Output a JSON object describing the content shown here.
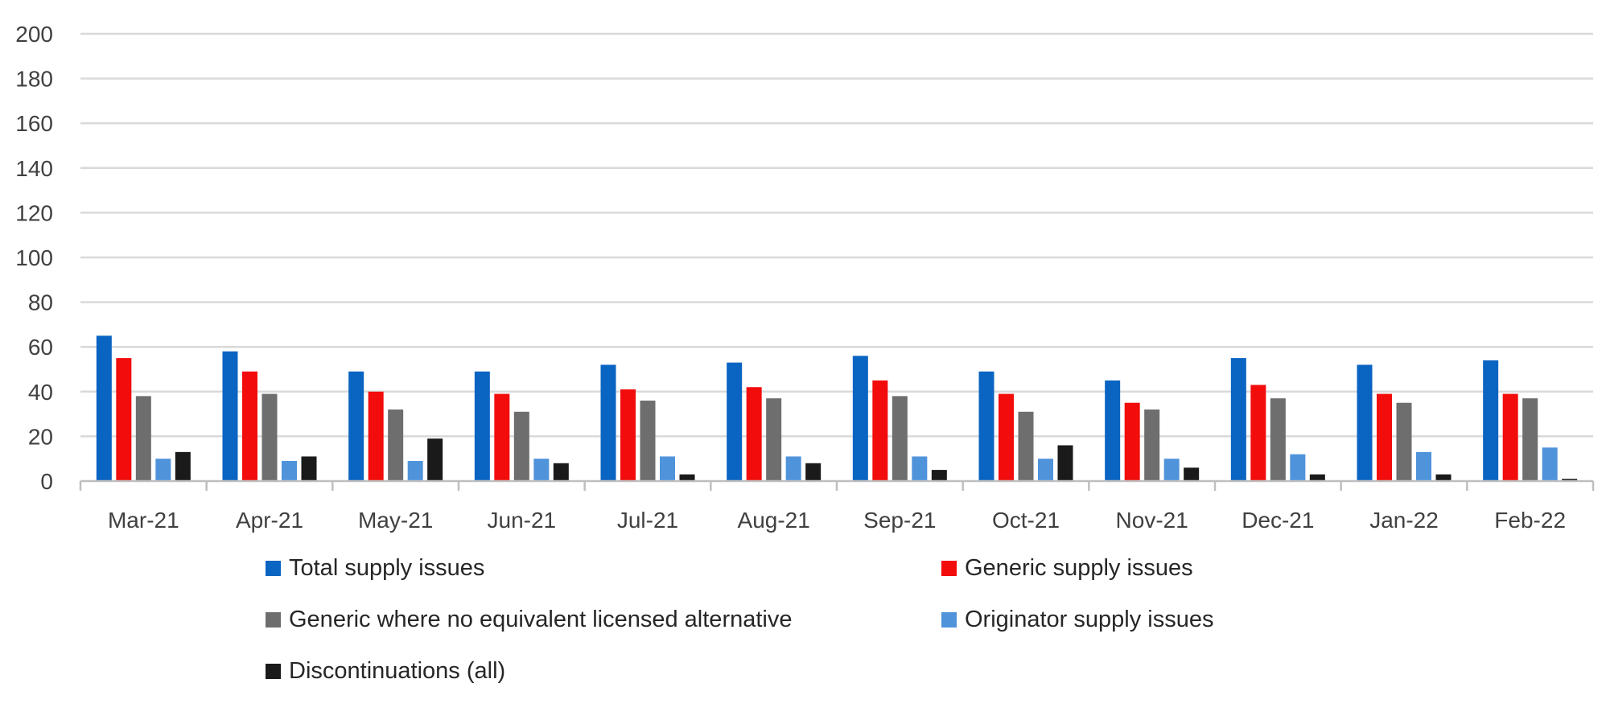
{
  "chart_data": {
    "type": "bar",
    "title": "",
    "xlabel": "",
    "ylabel": "",
    "ylim": [
      0,
      200
    ],
    "yticks": [
      0,
      20,
      40,
      60,
      80,
      100,
      120,
      140,
      160,
      180,
      200
    ],
    "grid": true,
    "legend_position": "bottom",
    "categories": [
      "Mar-21",
      "Apr-21",
      "May-21",
      "Jun-21",
      "Jul-21",
      "Aug-21",
      "Sep-21",
      "Oct-21",
      "Nov-21",
      "Dec-21",
      "Jan-22",
      "Feb-22"
    ],
    "series": [
      {
        "name": "Total supply issues",
        "color": "#0a64c2",
        "values": [
          65,
          58,
          49,
          49,
          52,
          53,
          56,
          49,
          45,
          55,
          52,
          54
        ]
      },
      {
        "name": "Generic supply issues",
        "color": "#f20c0c",
        "values": [
          55,
          49,
          40,
          39,
          41,
          42,
          45,
          39,
          35,
          43,
          39,
          39
        ]
      },
      {
        "name": "Generic where no equivalent licensed alternative",
        "color": "#6e6e6e",
        "values": [
          38,
          39,
          32,
          31,
          36,
          37,
          38,
          31,
          32,
          37,
          35,
          37
        ]
      },
      {
        "name": "Originator supply issues",
        "color": "#4f93db",
        "values": [
          10,
          9,
          9,
          10,
          11,
          11,
          11,
          10,
          10,
          12,
          13,
          15
        ]
      },
      {
        "name": "Discontinuations (all)",
        "color": "#1a1a1a",
        "values": [
          13,
          11,
          19,
          8,
          3,
          8,
          5,
          16,
          6,
          3,
          3,
          1
        ]
      }
    ]
  }
}
